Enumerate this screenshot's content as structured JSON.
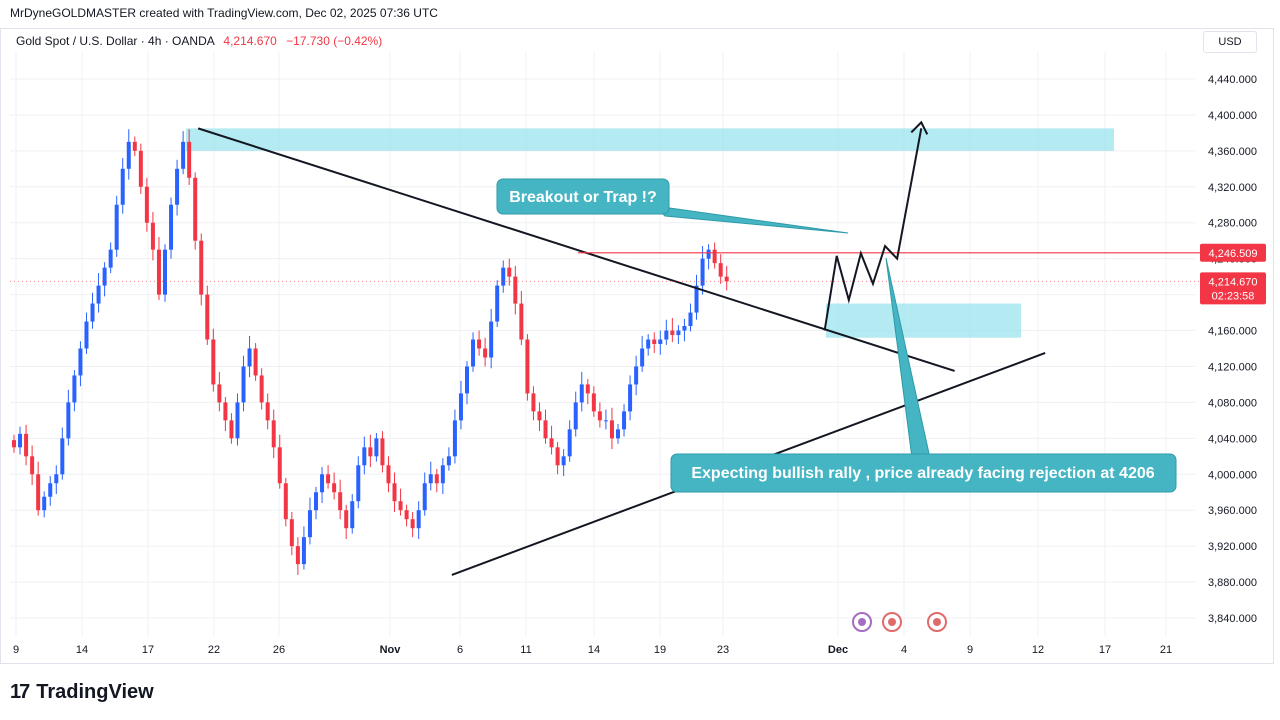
{
  "header": {
    "credit": "MrDyneGOLDMASTER created with TradingView.com, Dec 02, 2025 07:36 UTC",
    "symbol": "Gold Spot / U.S. Dollar · 4h · OANDA",
    "last_price": "4,214.670",
    "change": "−17.730 (−0.42%)",
    "currency": "USD"
  },
  "footer": {
    "logo_mark": "17",
    "logo_text": "TradingView"
  },
  "colors": {
    "up": "#2962ff",
    "down": "#f23645",
    "zone": "#9be3ec",
    "callout": "#45b5c4",
    "callout_text": "#ffffff",
    "trend": "#131722",
    "level": "#f23645",
    "grid": "#eef0f3"
  },
  "annotations": {
    "callout_top": "Breakout or Trap !?",
    "callout_bottom": "Expecting bullish rally , price already facing rejection at 4206",
    "level_label": "4,246.509",
    "last_label": "4,214.670",
    "countdown": "02:23:58"
  },
  "chart_data": {
    "type": "candlestick",
    "y_axis": {
      "range": [
        3820,
        4470
      ],
      "ticks": [
        "4,440.000",
        "4,400.000",
        "4,360.000",
        "4,320.000",
        "4,280.000",
        "4,240.000",
        "4,200.000",
        "4,160.000",
        "4,120.000",
        "4,080.000",
        "4,040.000",
        "4,000.000",
        "3,960.000",
        "3,920.000",
        "3,880.000",
        "3,840.000"
      ]
    },
    "x_axis": {
      "labels": [
        "9",
        "14",
        "17",
        "22",
        "26",
        "Nov",
        "6",
        "11",
        "14",
        "19",
        "23",
        "Dec",
        "4",
        "9",
        "12",
        "17",
        "21"
      ]
    },
    "closes_4h": [
      4030,
      4045,
      4020,
      4000,
      3960,
      3975,
      3990,
      4000,
      4040,
      4080,
      4110,
      4140,
      4170,
      4190,
      4210,
      4230,
      4250,
      4300,
      4340,
      4370,
      4360,
      4320,
      4280,
      4250,
      4200,
      4250,
      4300,
      4340,
      4370,
      4330,
      4260,
      4200,
      4150,
      4100,
      4080,
      4060,
      4040,
      4080,
      4120,
      4140,
      4110,
      4080,
      4060,
      4030,
      3990,
      3950,
      3920,
      3900,
      3930,
      3960,
      3980,
      4000,
      3990,
      3980,
      3960,
      3940,
      3970,
      4010,
      4030,
      4020,
      4040,
      4010,
      3990,
      3970,
      3960,
      3950,
      3940,
      3960,
      3990,
      4000,
      3990,
      4010,
      4020,
      4060,
      4090,
      4120,
      4150,
      4140,
      4130,
      4170,
      4210,
      4230,
      4220,
      4190,
      4150,
      4090,
      4070,
      4060,
      4040,
      4030,
      4010,
      4020,
      4050,
      4080,
      4100,
      4090,
      4070,
      4060,
      4060,
      4040,
      4050,
      4070,
      4100,
      4120,
      4140,
      4150,
      4145,
      4150,
      4160,
      4155,
      4160,
      4165,
      4180,
      4210,
      4240,
      4250,
      4235,
      4220,
      4214.67
    ],
    "series": [
      {
        "name": "Gold Spot / U.S. Dollar",
        "last": 4214.67
      }
    ],
    "levels": [
      {
        "value": 4246.509
      },
      {
        "value": 4214.67
      }
    ],
    "zones": [
      {
        "from": 4360,
        "to": 4385
      },
      {
        "from": 4152,
        "to": 4190
      }
    ],
    "trendlines": [
      {
        "from_x": 4,
        "from_y": 4385,
        "to_x": 140,
        "to_y": 4115
      },
      {
        "from_x": 46,
        "from_y": 3888,
        "to_x": 155,
        "to_y": 4135
      }
    ],
    "projection": [
      [
        116,
        4160
      ],
      [
        118,
        4243
      ],
      [
        120,
        4194
      ],
      [
        122,
        4246
      ],
      [
        124,
        4212
      ],
      [
        126,
        4254
      ],
      [
        128,
        4240
      ],
      [
        132,
        4385
      ]
    ]
  }
}
